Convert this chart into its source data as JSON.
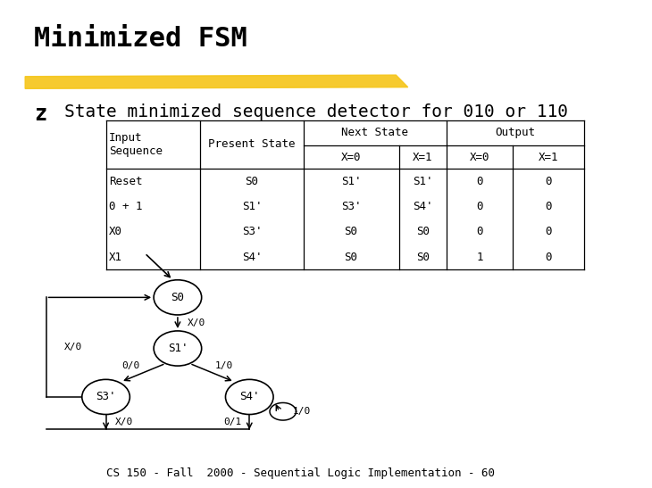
{
  "title": "Minimized FSM",
  "subtitle": "State minimized sequence detector for 010 or 110",
  "bullet_char": "z",
  "highlight_color": "#F5C518",
  "background_color": "#FFFFFF",
  "state_labels": {
    "S0": "S0",
    "S1p": "S1'",
    "S3p": "S3'",
    "S4p": "S4'"
  },
  "row_data": [
    [
      "Reset",
      "S0",
      "S1'",
      "S1'",
      "0",
      "0"
    ],
    [
      "0 + 1",
      "S1'",
      "S3'",
      "S4'",
      "0",
      "0"
    ],
    [
      "X0",
      "S3'",
      "S0",
      "S0",
      "0",
      "0"
    ],
    [
      "X1",
      "S4'",
      "S0",
      "S0",
      "1",
      "0"
    ]
  ],
  "footer": "CS 150 - Fall  2000 - Sequential Logic Implementation - 60",
  "title_fontsize": 22,
  "subtitle_fontsize": 14,
  "table_fontsize": 9,
  "footer_fontsize": 9
}
